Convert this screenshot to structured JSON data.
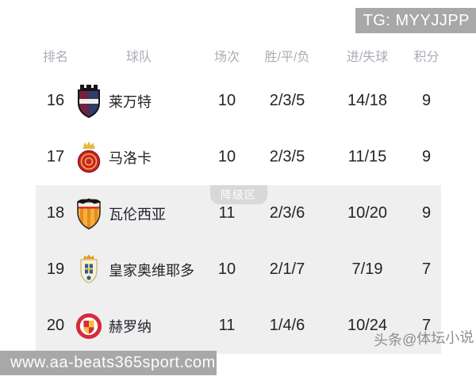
{
  "badge": {
    "text": "TG: MYYJJPP"
  },
  "footer": {
    "url": "www.aa-beats365sport.com"
  },
  "watermark": {
    "text": "头条@体坛小说"
  },
  "table": {
    "headers": {
      "rank": "排名",
      "team": "球队",
      "played": "场次",
      "wdl": "胜/平/负",
      "goals": "进/失球",
      "points": "积分"
    },
    "relegation_label": "降级区",
    "rows": [
      {
        "rank": "16",
        "team": "莱万特",
        "crest": "levante",
        "played": "10",
        "wdl": "2/3/5",
        "goals": "14/18",
        "points": "9",
        "zone": "normal"
      },
      {
        "rank": "17",
        "team": "马洛卡",
        "crest": "mallorca",
        "played": "10",
        "wdl": "2/3/5",
        "goals": "11/15",
        "points": "9",
        "zone": "normal"
      },
      {
        "rank": "18",
        "team": "瓦伦西亚",
        "crest": "valencia",
        "played": "11",
        "wdl": "2/3/6",
        "goals": "10/20",
        "points": "9",
        "zone": "relegation"
      },
      {
        "rank": "19",
        "team": "皇家奥维耶多",
        "crest": "oviedo",
        "played": "10",
        "wdl": "2/1/7",
        "goals": "7/19",
        "points": "7",
        "zone": "relegation"
      },
      {
        "rank": "20",
        "team": "赫罗纳",
        "crest": "girona",
        "played": "11",
        "wdl": "1/4/6",
        "goals": "10/24",
        "points": "7",
        "zone": "relegation"
      }
    ]
  },
  "colors": {
    "relegation_zone_bg": "#efeff0",
    "relegation_tab_bg": "#d8d8d8",
    "overlay_gray": "#a8a8a8",
    "header_text": "#a9aeb4",
    "data_text": "#212329",
    "crests": {
      "levante": {
        "garnet": "#6f2340",
        "navy": "#2c3e6b",
        "black": "#161616",
        "white": "#f3f0ea"
      },
      "mallorca": {
        "red": "#cf2030",
        "gold": "#e7b93c",
        "dark_red": "#8d1420"
      },
      "valencia": {
        "cream": "#f4efe0",
        "black": "#161616",
        "yellow": "#f3b13a",
        "orange": "#e88a1e",
        "red": "#d8352a"
      },
      "oviedo": {
        "cream": "#f6f1d6",
        "orange": "#e89c1e",
        "blue": "#2b5cab",
        "yellow": "#f5d04a",
        "edge": "#c8b06a"
      },
      "girona": {
        "red": "#d62b3d",
        "white": "#ffffff",
        "yellow": "#f2c23e"
      }
    }
  }
}
